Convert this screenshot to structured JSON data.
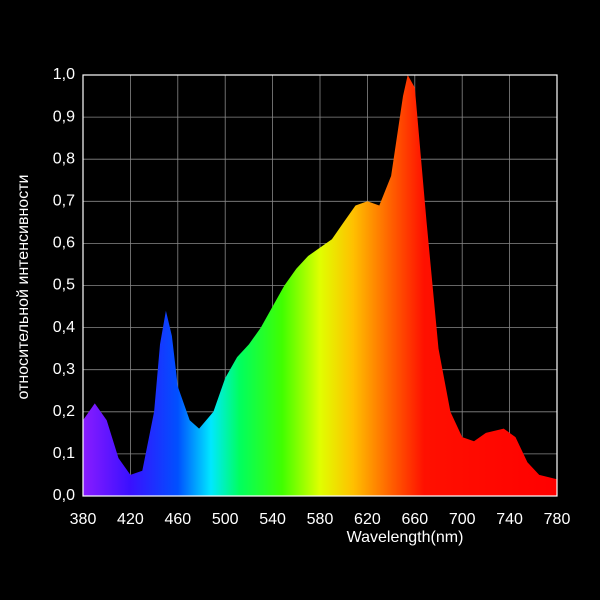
{
  "chart_data": {
    "type": "area",
    "x_label": "Wavelength(nm)",
    "y_label": "относительной интенсивности",
    "x": [
      380,
      390,
      400,
      410,
      420,
      430,
      440,
      445,
      450,
      455,
      460,
      470,
      478,
      490,
      500,
      510,
      520,
      530,
      540,
      550,
      560,
      570,
      580,
      590,
      600,
      610,
      620,
      630,
      640,
      650,
      654,
      660,
      670,
      680,
      690,
      700,
      710,
      720,
      735,
      745,
      755,
      765,
      780
    ],
    "values": [
      0.18,
      0.22,
      0.18,
      0.09,
      0.05,
      0.06,
      0.2,
      0.36,
      0.44,
      0.38,
      0.26,
      0.18,
      0.16,
      0.2,
      0.28,
      0.33,
      0.36,
      0.4,
      0.45,
      0.5,
      0.54,
      0.57,
      0.59,
      0.61,
      0.65,
      0.69,
      0.7,
      0.69,
      0.76,
      0.95,
      1.0,
      0.97,
      0.65,
      0.35,
      0.2,
      0.14,
      0.13,
      0.15,
      0.16,
      0.14,
      0.08,
      0.05,
      0.04
    ],
    "xlim": [
      380,
      780
    ],
    "xticks": [
      380,
      420,
      460,
      500,
      540,
      580,
      620,
      660,
      700,
      740,
      780
    ],
    "ylim": [
      0,
      1
    ],
    "yticks": [
      {
        "value": 0,
        "label": "0,0"
      },
      {
        "value": 0.1,
        "label": "0,1"
      },
      {
        "value": 0.2,
        "label": "0,2"
      },
      {
        "value": 0.3,
        "label": "0,3"
      },
      {
        "value": 0.4,
        "label": "0,4"
      },
      {
        "value": 0.5,
        "label": "0,5"
      },
      {
        "value": 0.6,
        "label": "0,6"
      },
      {
        "value": 0.7,
        "label": "0,7"
      },
      {
        "value": 0.8,
        "label": "0,8"
      },
      {
        "value": 0.9,
        "label": "0,9"
      },
      {
        "value": 1,
        "label": "1,0"
      }
    ],
    "grid": true
  }
}
